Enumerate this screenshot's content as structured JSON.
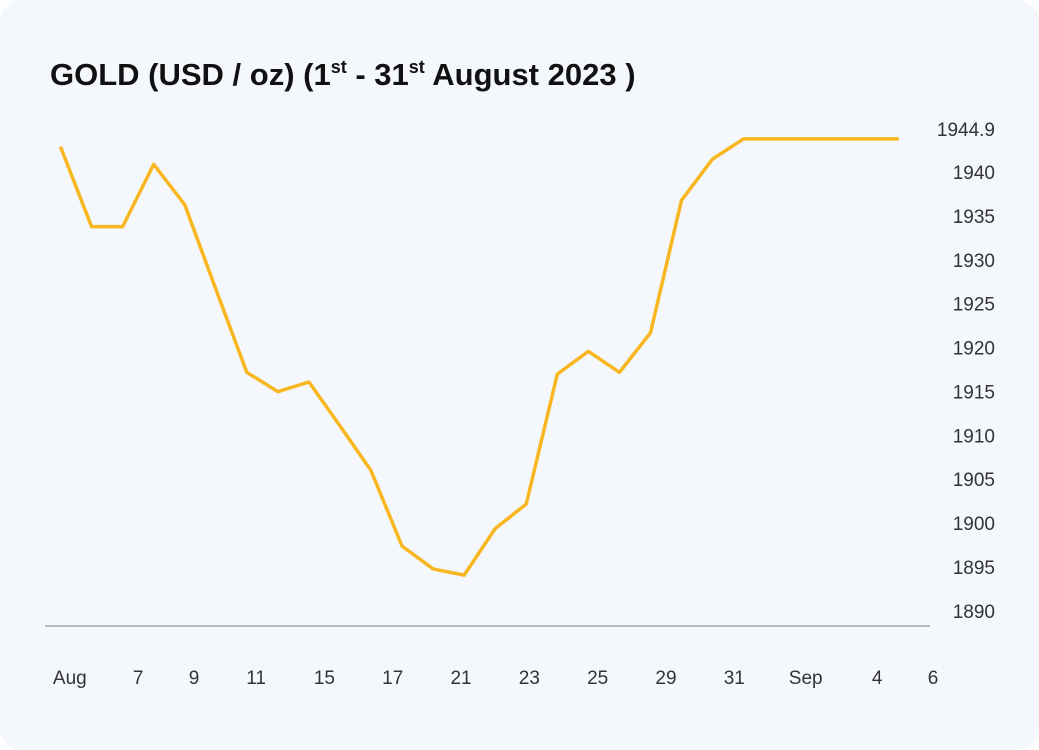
{
  "chart_data": {
    "type": "line",
    "title": [
      "GOLD (USD / oz)  (1",
      "st",
      " - 31",
      "st",
      " August 2023 )"
    ],
    "x": [
      0,
      1,
      2,
      3,
      4,
      5,
      6,
      7,
      8,
      9,
      10,
      11,
      12,
      13,
      14,
      15,
      16,
      17,
      18,
      19,
      20,
      21,
      22,
      23,
      24,
      25,
      26,
      27
    ],
    "series": [
      {
        "color": "#f8b620",
        "values": [
          1943.1,
          1934.0,
          1934.0,
          1941.1,
          1936.5,
          1926.9,
          1917.4,
          1915.2,
          1916.3,
          1911.3,
          1906.2,
          1897.6,
          1895.0,
          1894.3,
          1899.6,
          1902.4,
          1917.2,
          1919.8,
          1917.4,
          1921.9,
          1937.0,
          1941.7,
          1944.0,
          1944.0,
          1944.0,
          1944.0,
          1944.0,
          1944.0
        ]
      }
    ],
    "xlim": [
      -0.5,
      28.1
    ],
    "xticks": [
      {
        "value": 0.3,
        "label": "Aug"
      },
      2.5,
      4.3,
      6.3,
      8.5,
      10.7,
      12.9,
      15.1,
      17.3,
      19.5,
      21.7,
      {
        "value": 24,
        "label": "Sep"
      },
      26.3,
      28.1
    ],
    "xtick_labels": [
      "Aug",
      "7",
      "9",
      "11",
      "15",
      "17",
      "21",
      "23",
      "25",
      "29",
      "31",
      "Sep",
      "4",
      "6"
    ],
    "ylim": [
      1888.5,
      1944.9
    ],
    "yticks": [
      1890,
      1895,
      1900,
      1905,
      1910,
      1915,
      1920,
      1925,
      1930,
      1935,
      1940,
      1944.9
    ]
  }
}
